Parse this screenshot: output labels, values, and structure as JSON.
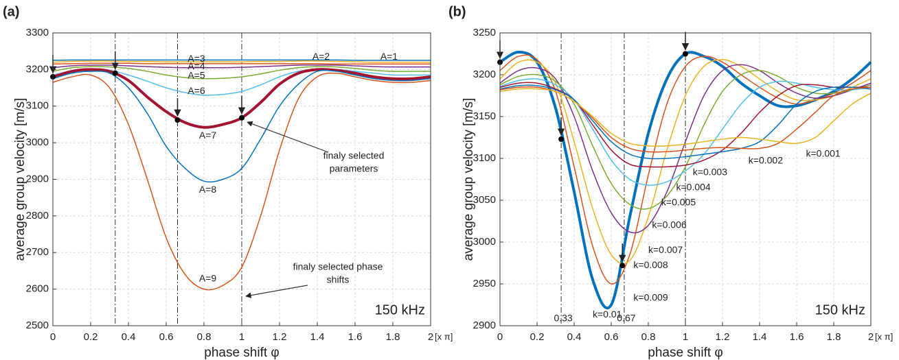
{
  "chart_data": [
    {
      "type": "line",
      "panel_label": "(a)",
      "x_label": "phase shift φ",
      "x_unit": "[x π]",
      "y_label": "average group velocity [m/s]",
      "frequency_label": "150 kHz",
      "xlim": [
        0,
        2
      ],
      "ylim": [
        2500,
        3300
      ],
      "xticks": [
        0,
        0.2,
        0.4,
        0.6,
        0.8,
        1,
        1.2,
        1.4,
        1.6,
        1.8,
        2
      ],
      "yticks": [
        2500,
        2600,
        2700,
        2800,
        2900,
        3000,
        3100,
        3200,
        3300
      ],
      "grid": true,
      "x": [
        0,
        0.1,
        0.2,
        0.3,
        0.4,
        0.5,
        0.6,
        0.7,
        0.8,
        0.9,
        1,
        1.1,
        1.2,
        1.3,
        1.4,
        1.5,
        1.6,
        1.7,
        1.8,
        1.9,
        2
      ],
      "series": [
        {
          "name": "A=1",
          "color": "#0072BD",
          "line_width": 1.5,
          "values": [
            3225,
            3226,
            3226,
            3226,
            3226,
            3226,
            3226,
            3226,
            3226,
            3226,
            3226,
            3226,
            3226,
            3226,
            3226,
            3226,
            3225,
            3225,
            3225,
            3225,
            3225
          ]
        },
        {
          "name": "A=2",
          "color": "#D95319",
          "line_width": 1.5,
          "values": [
            3215,
            3216,
            3217,
            3217,
            3217,
            3216,
            3216,
            3216,
            3216,
            3216,
            3216,
            3216,
            3216,
            3216,
            3216,
            3215,
            3215,
            3215,
            3215,
            3215,
            3215
          ]
        },
        {
          "name": "A=3",
          "color": "#EDB120",
          "line_width": 1.5,
          "values": [
            3220,
            3222,
            3223,
            3223,
            3222,
            3222,
            3221,
            3221,
            3221,
            3221,
            3221,
            3222,
            3222,
            3223,
            3223,
            3222,
            3221,
            3220,
            3220,
            3220,
            3220
          ]
        },
        {
          "name": "A=4",
          "color": "#7E2F8E",
          "line_width": 1.5,
          "values": [
            3205,
            3210,
            3212,
            3212,
            3210,
            3208,
            3206,
            3205,
            3205,
            3205,
            3206,
            3208,
            3210,
            3212,
            3212,
            3212,
            3210,
            3208,
            3207,
            3207,
            3207
          ]
        },
        {
          "name": "A=5",
          "color": "#77AC30",
          "line_width": 1.5,
          "values": [
            3195,
            3205,
            3208,
            3207,
            3203,
            3195,
            3185,
            3178,
            3175,
            3176,
            3180,
            3188,
            3198,
            3205,
            3208,
            3207,
            3203,
            3198,
            3195,
            3195,
            3195
          ]
        },
        {
          "name": "A=6",
          "color": "#4DBEEE",
          "line_width": 1.5,
          "values": [
            3185,
            3195,
            3200,
            3198,
            3185,
            3168,
            3150,
            3137,
            3130,
            3132,
            3140,
            3158,
            3180,
            3195,
            3200,
            3200,
            3195,
            3190,
            3185,
            3185,
            3185
          ]
        },
        {
          "name": "A=7",
          "color": "#A2142F",
          "line_width": 4,
          "values": [
            3180,
            3195,
            3200,
            3195,
            3170,
            3125,
            3085,
            3055,
            3042,
            3050,
            3068,
            3110,
            3160,
            3190,
            3200,
            3198,
            3190,
            3180,
            3175,
            3175,
            3180
          ]
        },
        {
          "name": "A=8",
          "color": "#0072BD",
          "line_width": 1.5,
          "values": [
            3175,
            3190,
            3195,
            3190,
            3150,
            3080,
            2990,
            2930,
            2895,
            2900,
            2930,
            3010,
            3100,
            3160,
            3195,
            3195,
            3185,
            3175,
            3170,
            3170,
            3175
          ]
        },
        {
          "name": "A=9",
          "color": "#D95319",
          "line_width": 1.5,
          "values": [
            3165,
            3180,
            3185,
            3150,
            3050,
            2900,
            2740,
            2640,
            2600,
            2610,
            2660,
            2800,
            2980,
            3120,
            3180,
            3190,
            3180,
            3170,
            3165,
            3165,
            3170
          ]
        }
      ],
      "vlines": [
        0.33,
        0.66,
        1
      ],
      "markers": {
        "x": [
          0,
          0.33,
          0.66,
          1
        ],
        "y": [
          3180,
          3190,
          3062,
          3068
        ]
      },
      "annotations": [
        [
          "finaly selected",
          "parameters"
        ],
        [
          "finaly selected phase",
          "shifts"
        ]
      ]
    },
    {
      "type": "line",
      "panel_label": "(b)",
      "x_label": "phase shift φ",
      "x_unit": "[x π]",
      "y_label": "average group velocity [m/s]",
      "frequency_label": "150 kHz",
      "xlim": [
        0,
        2
      ],
      "ylim": [
        2900,
        3250
      ],
      "xticks": [
        0,
        0.2,
        0.4,
        0.6,
        0.8,
        1,
        1.2,
        1.4,
        1.6,
        1.8,
        2
      ],
      "yticks": [
        2900,
        2950,
        3000,
        3050,
        3100,
        3150,
        3200,
        3250
      ],
      "grid": true,
      "x": [
        0,
        0.1,
        0.2,
        0.3,
        0.4,
        0.5,
        0.6,
        0.7,
        0.8,
        0.9,
        1,
        1.1,
        1.2,
        1.3,
        1.4,
        1.5,
        1.6,
        1.7,
        1.8,
        1.9,
        2
      ],
      "series": [
        {
          "name": "k=0.01",
          "color": "#0072BD",
          "line_width": 4,
          "values": [
            3215,
            3227,
            3215,
            3160,
            3060,
            2955,
            2925,
            3030,
            3130,
            3195,
            3225,
            3222,
            3210,
            3190,
            3175,
            3163,
            3163,
            3170,
            3180,
            3195,
            3215
          ]
        },
        {
          "name": "k=0.009",
          "color": "#D95319",
          "line_width": 1.5,
          "values": [
            3205,
            3222,
            3218,
            3180,
            3090,
            2995,
            2950,
            2985,
            3080,
            3165,
            3210,
            3222,
            3215,
            3200,
            3185,
            3172,
            3165,
            3170,
            3178,
            3190,
            3205
          ]
        },
        {
          "name": "k=0.008",
          "color": "#EDB120",
          "line_width": 1.5,
          "values": [
            3195,
            3215,
            3215,
            3190,
            3120,
            3040,
            2985,
            2978,
            3030,
            3110,
            3175,
            3210,
            3218,
            3210,
            3195,
            3180,
            3170,
            3170,
            3175,
            3185,
            3195
          ]
        },
        {
          "name": "k=0.007",
          "color": "#7E2F8E",
          "line_width": 1.5,
          "values": [
            3190,
            3205,
            3208,
            3195,
            3150,
            3085,
            3035,
            3012,
            3020,
            3060,
            3120,
            3175,
            3205,
            3212,
            3205,
            3190,
            3178,
            3172,
            3175,
            3182,
            3190
          ]
        },
        {
          "name": "k=0.006",
          "color": "#77AC30",
          "line_width": 1.5,
          "values": [
            3188,
            3198,
            3200,
            3192,
            3165,
            3115,
            3070,
            3045,
            3040,
            3055,
            3090,
            3140,
            3180,
            3200,
            3205,
            3198,
            3185,
            3178,
            3178,
            3182,
            3188
          ]
        },
        {
          "name": "k=0.005",
          "color": "#4DBEEE",
          "line_width": 1.5,
          "values": [
            3186,
            3193,
            3195,
            3188,
            3170,
            3135,
            3098,
            3075,
            3068,
            3072,
            3085,
            3105,
            3135,
            3165,
            3185,
            3192,
            3190,
            3185,
            3182,
            3182,
            3185
          ]
        },
        {
          "name": "k=0.004",
          "color": "#A2142F",
          "line_width": 1.5,
          "values": [
            3185,
            3190,
            3190,
            3183,
            3170,
            3140,
            3110,
            3093,
            3090,
            3090,
            3092,
            3098,
            3110,
            3130,
            3155,
            3175,
            3187,
            3188,
            3185,
            3185,
            3185
          ]
        },
        {
          "name": "k=0.003",
          "color": "#0072BD",
          "line_width": 1.5,
          "values": [
            3183,
            3187,
            3187,
            3182,
            3170,
            3145,
            3120,
            3105,
            3100,
            3100,
            3102,
            3105,
            3108,
            3112,
            3120,
            3140,
            3165,
            3180,
            3185,
            3185,
            3183
          ]
        },
        {
          "name": "k=0.002",
          "color": "#D95319",
          "line_width": 1.5,
          "values": [
            3182,
            3185,
            3185,
            3180,
            3168,
            3148,
            3125,
            3112,
            3108,
            3108,
            3110,
            3112,
            3113,
            3112,
            3112,
            3118,
            3135,
            3155,
            3175,
            3183,
            3185
          ]
        },
        {
          "name": "k=0.001",
          "color": "#EDB120",
          "line_width": 1.5,
          "values": [
            3180,
            3183,
            3183,
            3180,
            3168,
            3150,
            3130,
            3118,
            3115,
            3115,
            3117,
            3120,
            3123,
            3125,
            3123,
            3120,
            3118,
            3125,
            3145,
            3165,
            3178
          ]
        }
      ],
      "vlines": [
        {
          "value": 0.33,
          "label": "0.33"
        },
        {
          "value": 0.67,
          "label": "0.67"
        },
        1
      ],
      "markers": {
        "x": [
          0,
          0.33,
          0.66,
          1
        ],
        "y": [
          3215,
          3123,
          2972,
          3225
        ]
      }
    }
  ]
}
